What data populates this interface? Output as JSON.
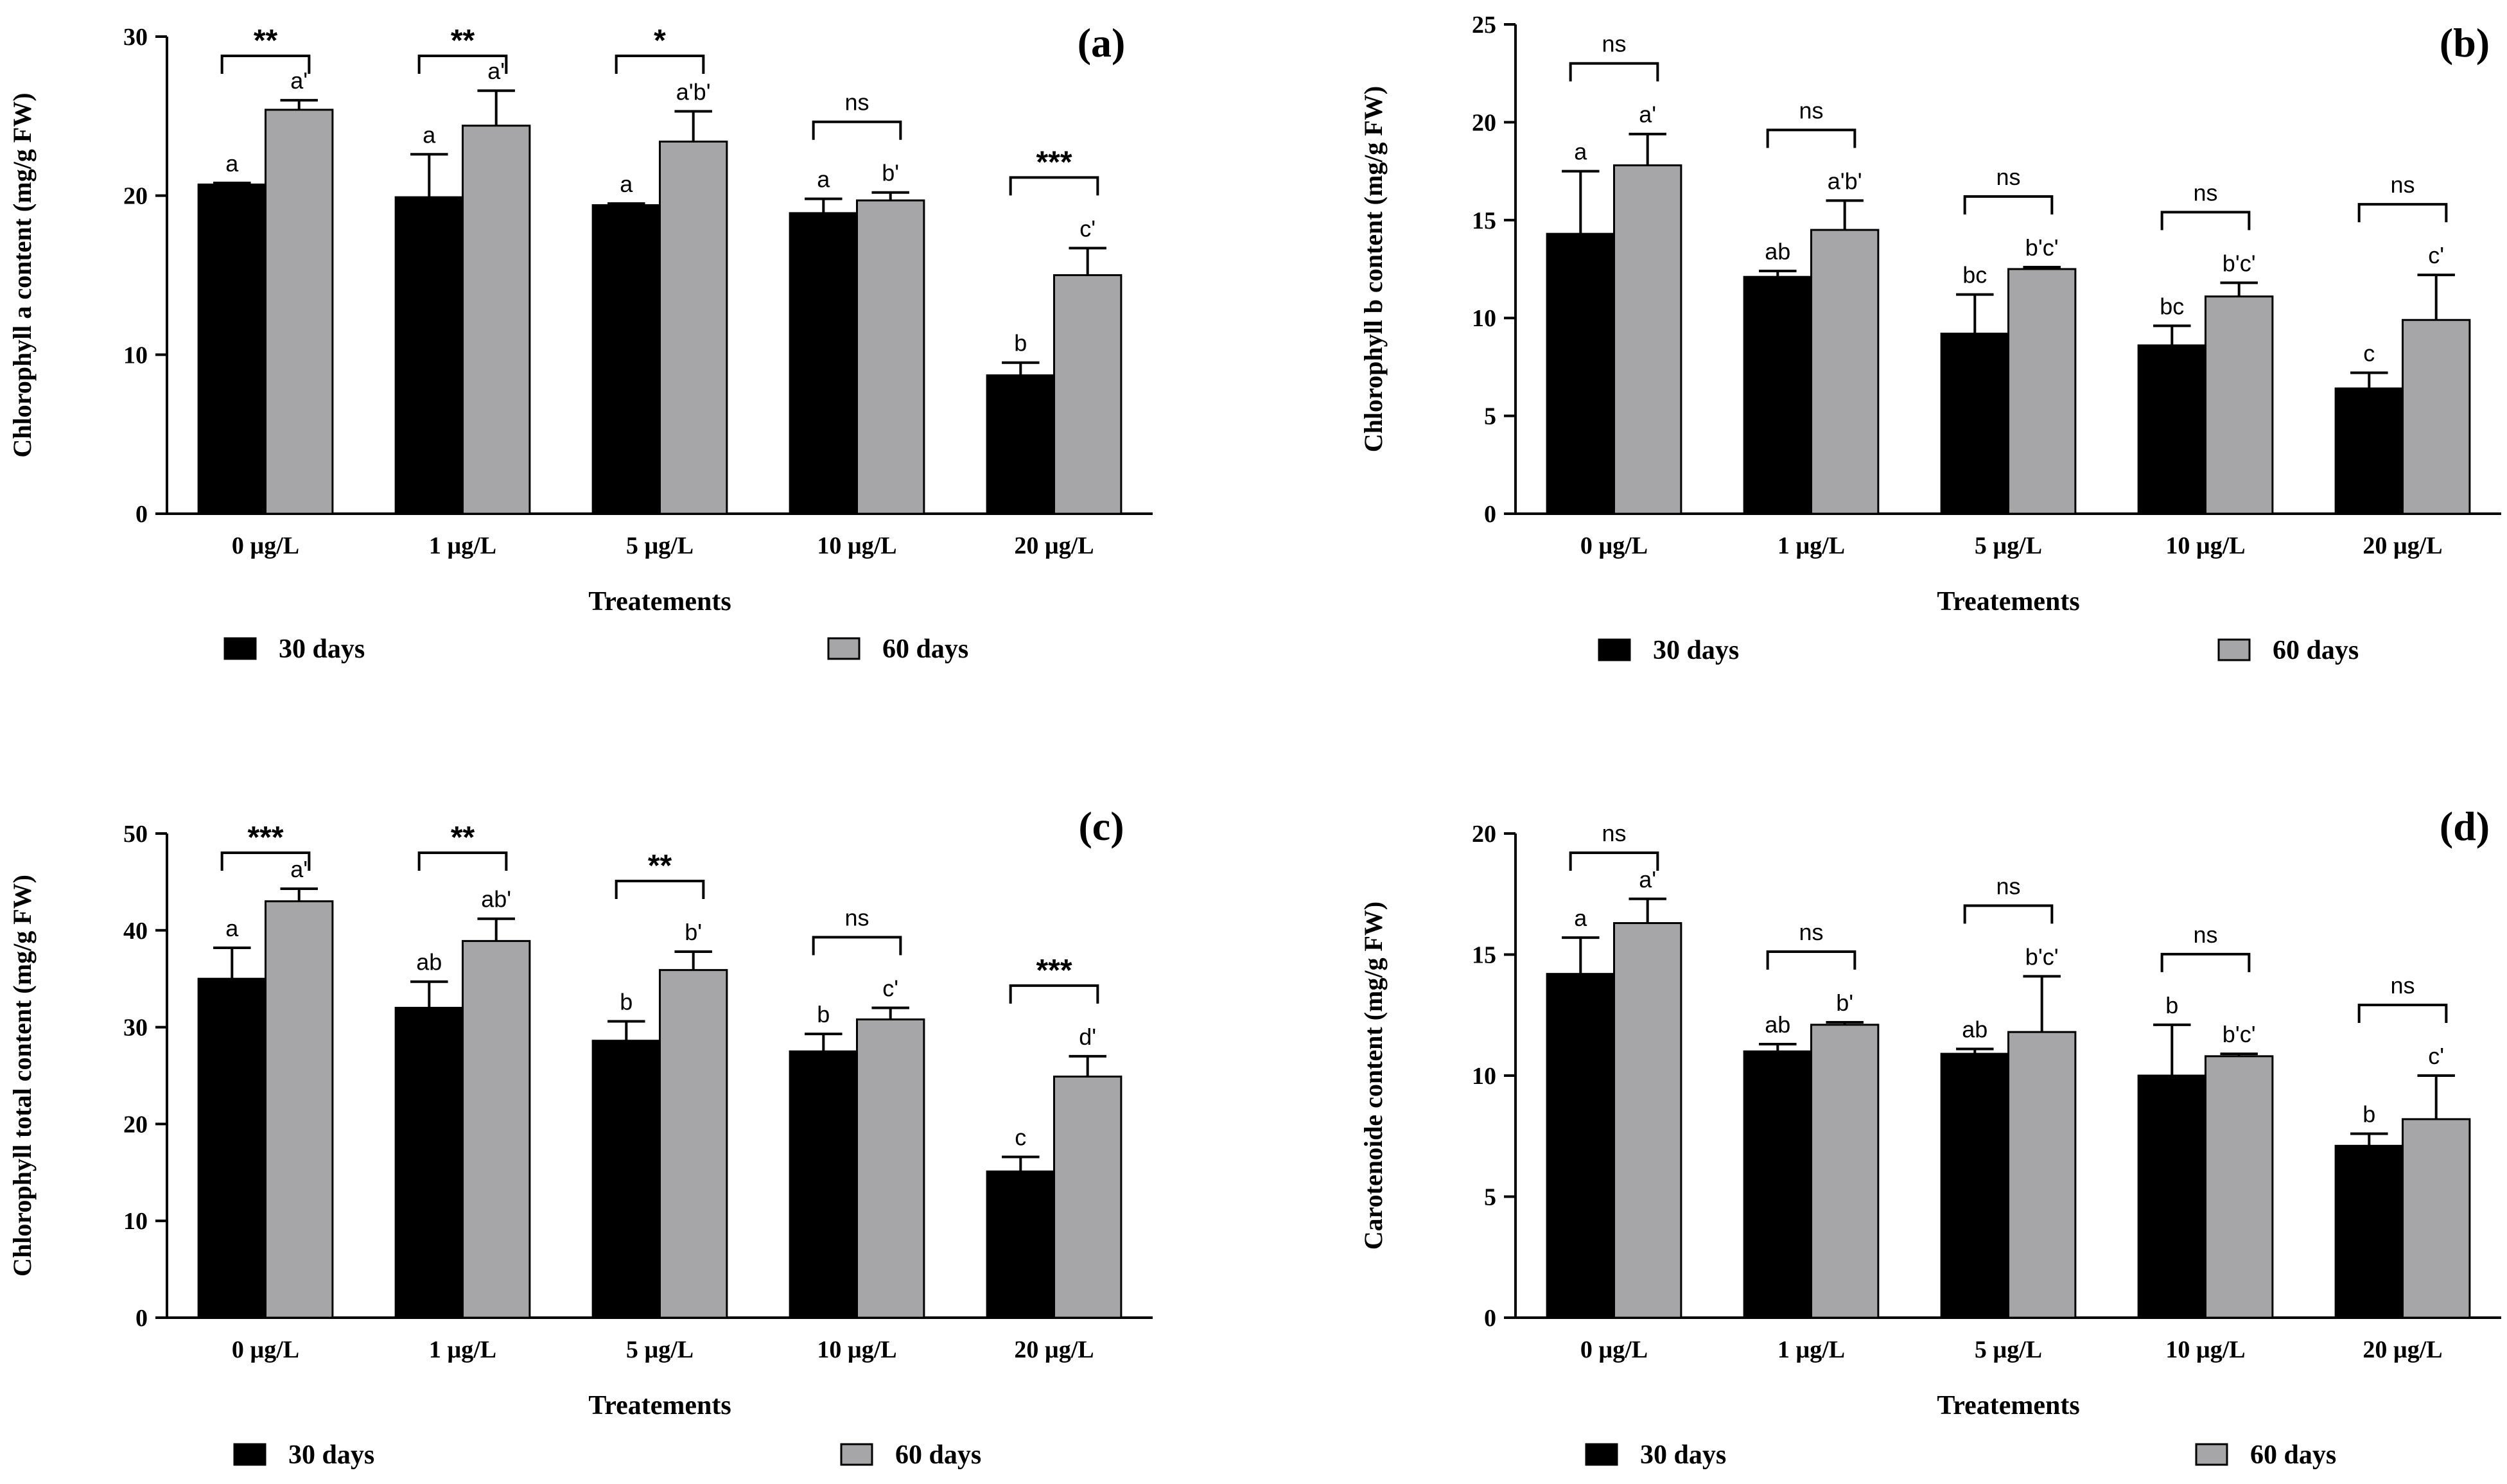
{
  "colors": {
    "series_30": "#000000",
    "series_60": "#a6a6a8",
    "axis": "#000000"
  },
  "chart_data": [
    {
      "type": "bar",
      "panel": "(a)",
      "ylabel": "Chlorophyll a content (mg/g FW)",
      "xlabel": "Treatements",
      "categories": [
        "0 µg/L",
        "1 µg/L",
        "5 µg/L",
        "10 µg/L",
        "20 µg/L"
      ],
      "ylim": [
        0,
        30
      ],
      "yticks": [
        0,
        10,
        20,
        30
      ],
      "series": [
        {
          "name": "30 days",
          "values": [
            20.7,
            19.9,
            19.4,
            18.9,
            8.7
          ],
          "errors": [
            0.1,
            2.7,
            0.1,
            0.9,
            0.8
          ],
          "letters": [
            "a",
            "a",
            "a",
            "a",
            "b"
          ]
        },
        {
          "name": "60 days",
          "values": [
            25.4,
            24.4,
            23.4,
            19.7,
            15.0
          ],
          "errors": [
            0.6,
            2.2,
            1.9,
            0.5,
            1.7
          ],
          "letters": [
            "a'",
            "a'",
            "a'b'",
            "b'",
            "c'"
          ]
        }
      ],
      "significance": [
        "**",
        "**",
        "*",
        "ns",
        "***"
      ],
      "legend_position": "bottom"
    },
    {
      "type": "bar",
      "panel": "(b)",
      "ylabel": "Chlorophyll b content (mg/g FW)",
      "xlabel": "Treatements",
      "categories": [
        "0 µg/L",
        "1 µg/L",
        "5 µg/L",
        "10 µg/L",
        "20 µg/L"
      ],
      "ylim": [
        0,
        25
      ],
      "yticks": [
        0,
        5,
        10,
        15,
        20,
        25
      ],
      "series": [
        {
          "name": "30 days",
          "values": [
            14.3,
            12.1,
            9.2,
            8.6,
            6.4
          ],
          "errors": [
            3.2,
            0.3,
            2.0,
            1.0,
            0.8
          ],
          "letters": [
            "a",
            "ab",
            "bc",
            "bc",
            "c"
          ]
        },
        {
          "name": "60 days",
          "values": [
            17.8,
            14.5,
            12.5,
            11.1,
            9.9
          ],
          "errors": [
            1.6,
            1.5,
            0.1,
            0.7,
            2.3
          ],
          "letters": [
            "a'",
            "a'b'",
            "b'c'",
            "b'c'",
            "c'"
          ]
        }
      ],
      "significance": [
        "ns",
        "ns",
        "ns",
        "ns",
        "ns"
      ],
      "legend_position": "bottom"
    },
    {
      "type": "bar",
      "panel": "(c)",
      "ylabel": "Chlorophyll total content (mg/g FW)",
      "xlabel": "Treatements",
      "categories": [
        "0 µg/L",
        "1 µg/L",
        "5 µg/L",
        "10 µg/L",
        "20 µg/L"
      ],
      "ylim": [
        0,
        50
      ],
      "yticks": [
        0,
        10,
        20,
        30,
        40,
        50
      ],
      "series": [
        {
          "name": "30 days",
          "values": [
            35.0,
            32.0,
            28.6,
            27.5,
            15.1
          ],
          "errors": [
            3.2,
            2.7,
            2.0,
            1.8,
            1.5
          ],
          "letters": [
            "a",
            "ab",
            "b",
            "b",
            "c"
          ]
        },
        {
          "name": "60 days",
          "values": [
            43.0,
            38.9,
            35.9,
            30.8,
            24.9
          ],
          "errors": [
            1.3,
            2.3,
            1.9,
            1.2,
            2.1
          ],
          "letters": [
            "a'",
            "ab'",
            "b'",
            "c'",
            "d'"
          ]
        }
      ],
      "significance": [
        "***",
        "**",
        "**",
        "ns",
        "***"
      ],
      "legend_position": "bottom"
    },
    {
      "type": "bar",
      "panel": "(d)",
      "ylabel": "Carotenoide content (mg/g FW)",
      "xlabel": "Treatements",
      "categories": [
        "0 µg/L",
        "1 µg/L",
        "5 µg/L",
        "10 µg/L",
        "20 µg/L"
      ],
      "ylim": [
        0,
        20
      ],
      "yticks": [
        0,
        5,
        10,
        15,
        20
      ],
      "series": [
        {
          "name": "30 days",
          "values": [
            14.2,
            11.0,
            10.9,
            10.0,
            7.1
          ],
          "errors": [
            1.5,
            0.3,
            0.2,
            2.1,
            0.5
          ],
          "letters": [
            "a",
            "ab",
            "ab",
            "b",
            "b"
          ]
        },
        {
          "name": "60 days",
          "values": [
            16.3,
            12.1,
            11.8,
            10.8,
            8.2
          ],
          "errors": [
            1.0,
            0.1,
            2.3,
            0.1,
            1.8
          ],
          "letters": [
            "a'",
            "b'",
            "b'c'",
            "b'c'",
            "c'"
          ]
        }
      ],
      "significance": [
        "ns",
        "ns",
        "ns",
        "ns",
        "ns"
      ],
      "legend_position": "bottom"
    }
  ]
}
